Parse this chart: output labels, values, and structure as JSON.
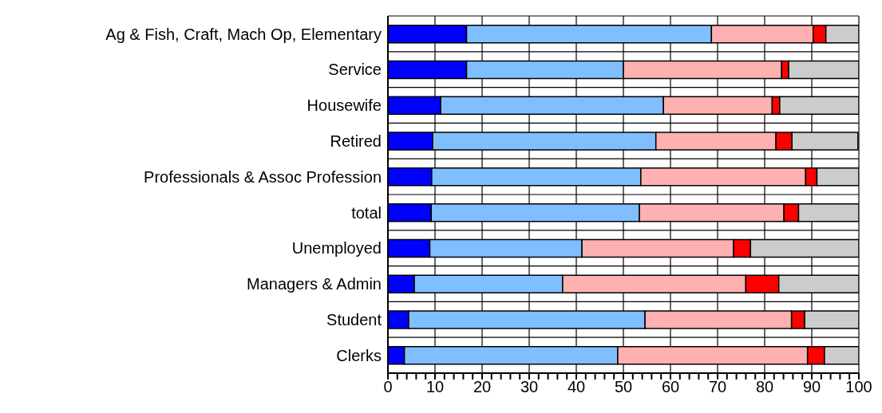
{
  "chart_data": {
    "type": "bar",
    "orientation": "horizontal",
    "stacked": true,
    "grid": true,
    "legend": false,
    "categories": [
      "Ag & Fish, Craft, Mach Op, Elementary",
      "Service",
      "Housewife",
      "Retired",
      "Professionals & Assoc Profession",
      "total",
      "Unemployed",
      "Managers & Admin",
      "Student",
      "Clerks"
    ],
    "series": [
      {
        "color": "#0000ff",
        "values": [
          16.7,
          16.7,
          11.2,
          9.5,
          9.3,
          9.2,
          8.9,
          5.6,
          4.4,
          3.5
        ]
      },
      {
        "color": "#80bfff",
        "values": [
          52.0,
          33.3,
          47.3,
          47.4,
          44.4,
          44.2,
          32.3,
          31.5,
          50.2,
          45.3
        ]
      },
      {
        "color": "#ffb0b0",
        "values": [
          21.6,
          33.6,
          23.1,
          25.5,
          35.0,
          30.7,
          32.2,
          38.9,
          31.1,
          40.3
        ]
      },
      {
        "color": "#ff0000",
        "values": [
          2.7,
          1.5,
          1.6,
          3.4,
          2.4,
          3.1,
          3.6,
          7.0,
          2.8,
          3.6
        ]
      },
      {
        "color": "#cccccc",
        "values": [
          7.0,
          14.9,
          16.8,
          14.0,
          8.9,
          12.8,
          23.0,
          17.0,
          11.5,
          7.3
        ]
      }
    ],
    "xlim": [
      0,
      100
    ],
    "xticks": [
      0,
      {
        "value": 2,
        "label": null
      },
      {
        "value": 4,
        "label": null
      },
      {
        "value": 6,
        "label": null
      },
      {
        "value": 8,
        "label": null
      },
      10,
      {
        "value": 12,
        "label": null
      },
      {
        "value": 14,
        "label": null
      },
      {
        "value": 16,
        "label": null
      },
      {
        "value": 18,
        "label": null
      },
      20,
      {
        "value": 22,
        "label": null
      },
      {
        "value": 24,
        "label": null
      },
      {
        "value": 26,
        "label": null
      },
      {
        "value": 28,
        "label": null
      },
      30,
      {
        "value": 32,
        "label": null
      },
      {
        "value": 34,
        "label": null
      },
      {
        "value": 36,
        "label": null
      },
      {
        "value": 38,
        "label": null
      },
      40,
      {
        "value": 42,
        "label": null
      },
      {
        "value": 44,
        "label": null
      },
      {
        "value": 46,
        "label": null
      },
      {
        "value": 48,
        "label": null
      },
      50,
      {
        "value": 52,
        "label": null
      },
      {
        "value": 54,
        "label": null
      },
      {
        "value": 56,
        "label": null
      },
      {
        "value": 58,
        "label": null
      },
      60,
      {
        "value": 62,
        "label": null
      },
      {
        "value": 64,
        "label": null
      },
      {
        "value": 66,
        "label": null
      },
      {
        "value": 68,
        "label": null
      },
      70,
      {
        "value": 72,
        "label": null
      },
      {
        "value": 74,
        "label": null
      },
      {
        "value": 76,
        "label": null
      },
      {
        "value": 78,
        "label": null
      },
      80,
      {
        "value": 82,
        "label": null
      },
      {
        "value": 84,
        "label": null
      },
      {
        "value": 86,
        "label": null
      },
      {
        "value": 88,
        "label": null
      },
      90,
      {
        "value": 92,
        "label": null
      },
      {
        "value": 94,
        "label": null
      },
      {
        "value": 96,
        "label": null
      },
      {
        "value": 98,
        "label": null
      },
      100
    ]
  }
}
